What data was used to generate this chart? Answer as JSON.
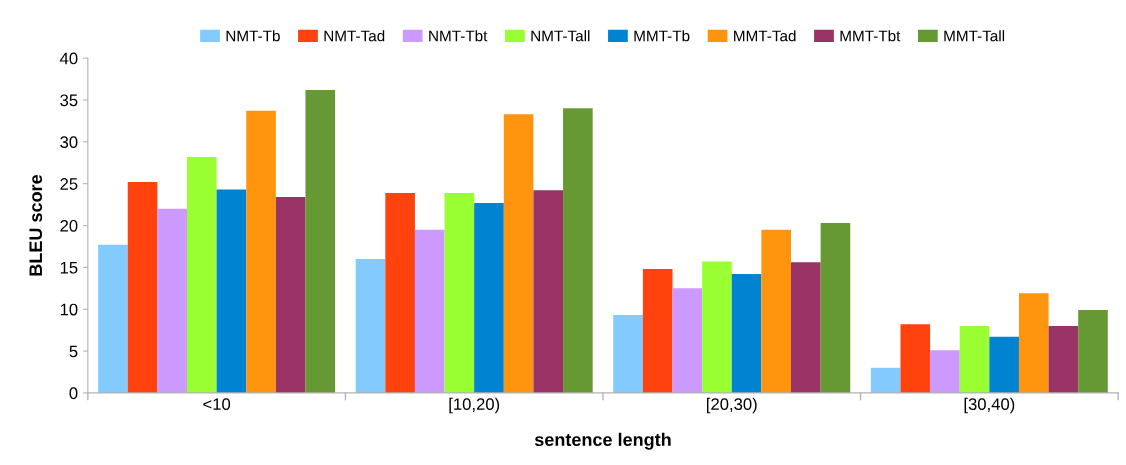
{
  "chart_data": {
    "type": "bar",
    "xlabel": "sentence length",
    "ylabel": "BLEU score",
    "categories": [
      "<10",
      "[10,20)",
      "[20,30)",
      "[30,40)"
    ],
    "series": [
      {
        "name": "NMT-Tb",
        "color": "#83caff",
        "values": [
          17.7,
          16.0,
          9.3,
          3.0
        ]
      },
      {
        "name": "NMT-Tad",
        "color": "#ff420e",
        "values": [
          25.2,
          23.9,
          14.8,
          8.2
        ]
      },
      {
        "name": "NMT-Tbt",
        "color": "#cc99ff",
        "values": [
          22.0,
          19.5,
          12.5,
          5.1
        ]
      },
      {
        "name": "NMT-Tall",
        "color": "#99ff33",
        "values": [
          28.2,
          23.9,
          15.7,
          8.0
        ]
      },
      {
        "name": "MMT-Tb",
        "color": "#0084d1",
        "values": [
          24.3,
          22.7,
          14.2,
          6.7
        ]
      },
      {
        "name": "MMT-Tad",
        "color": "#ff950e",
        "values": [
          33.7,
          33.3,
          19.5,
          11.9
        ]
      },
      {
        "name": "MMT-Tbt",
        "color": "#993366",
        "values": [
          23.4,
          24.2,
          15.6,
          8.0
        ]
      },
      {
        "name": "MMT-Tall",
        "color": "#669933",
        "values": [
          36.2,
          34.0,
          20.3,
          9.9
        ]
      }
    ],
    "ylim": [
      0,
      40
    ],
    "yticks": [
      0,
      5,
      10,
      15,
      20,
      25,
      30,
      35,
      40
    ],
    "grid": false,
    "legend": "top"
  }
}
